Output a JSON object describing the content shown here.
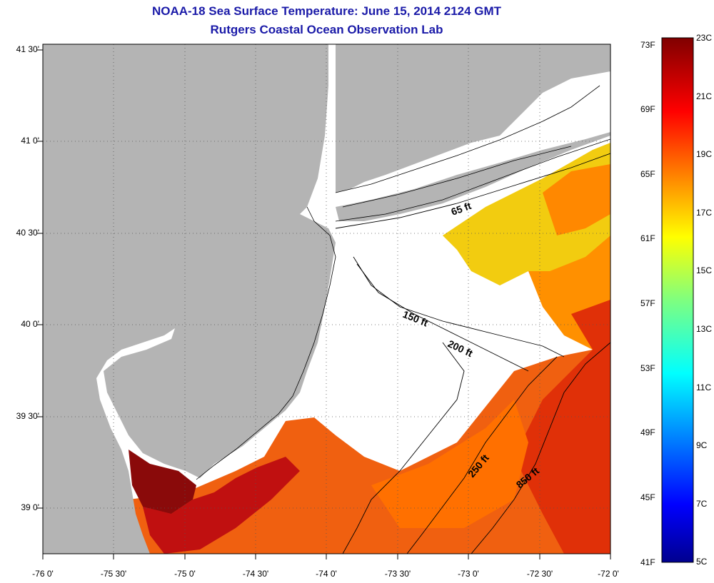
{
  "title": {
    "line1": "NOAA-18 Sea Surface Temperature:  June 15, 2014 2124 GMT",
    "line2": "Rutgers Coastal Ocean Observation Lab"
  },
  "map": {
    "lat_ticks": [
      "41 30'",
      "41 0'",
      "40 30'",
      "40 0'",
      "39 30'",
      "39 0'"
    ],
    "lon_ticks": [
      "-76 0'",
      "-75 30'",
      "-75 0'",
      "-74 30'",
      "-74 0'",
      "-73 30'",
      "-73 0'",
      "-72 30'",
      "-72 0'"
    ],
    "grid": "dotted",
    "colors": {
      "land": "#b4b4b4",
      "no_data": "#ffffff",
      "coastline": "#000000"
    }
  },
  "contours": [
    {
      "label": "65 ft"
    },
    {
      "label": "150 ft"
    },
    {
      "label": "200 ft"
    },
    {
      "label": "250 ft"
    },
    {
      "label": "850 ft"
    }
  ],
  "colorbar": {
    "fahrenheit": [
      "73F",
      "69F",
      "65F",
      "61F",
      "57F",
      "53F",
      "49F",
      "45F",
      "41F"
    ],
    "celsius": [
      "23C",
      "21C",
      "19C",
      "17C",
      "15C",
      "13C",
      "11C",
      "9C",
      "7C",
      "5C"
    ],
    "colormap": "jet",
    "range_c": [
      5,
      23
    ]
  }
}
